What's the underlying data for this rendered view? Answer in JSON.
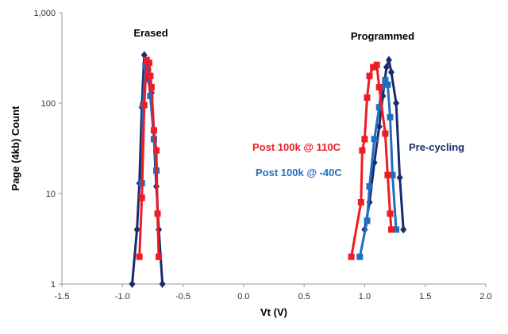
{
  "chart_data": {
    "type": "line",
    "xlabel": "Vt (V)",
    "ylabel": "Page (4kb) Count",
    "xlim": [
      -1.5,
      2.0
    ],
    "ylim": [
      1,
      1000
    ],
    "yscale": "log",
    "xticks": [
      "-1.5",
      "-1.0",
      "-0.5",
      "0.0",
      "0.5",
      "1.0",
      "1.5",
      "2.0"
    ],
    "yticks": [
      "1",
      "10",
      "100",
      "1,000"
    ],
    "annotations": [
      "Erased",
      "Programmed"
    ],
    "series": [
      {
        "name": "Post 100k @ 110C",
        "color": "#ee1c25",
        "marker": "square",
        "groups": [
          [
            [
              -0.86,
              2
            ],
            [
              -0.84,
              9
            ],
            [
              -0.82,
              95
            ],
            [
              -0.8,
              300
            ],
            [
              -0.78,
              280
            ],
            [
              -0.77,
              200
            ],
            [
              -0.76,
              150
            ],
            [
              -0.74,
              50
            ],
            [
              -0.72,
              30
            ],
            [
              -0.71,
              6
            ],
            [
              -0.7,
              2
            ]
          ],
          [
            [
              0.89,
              2
            ],
            [
              0.97,
              8
            ],
            [
              0.98,
              30
            ],
            [
              1.0,
              40
            ],
            [
              1.02,
              115
            ],
            [
              1.04,
              200
            ],
            [
              1.07,
              250
            ],
            [
              1.1,
              265
            ],
            [
              1.12,
              150
            ],
            [
              1.17,
              46
            ],
            [
              1.19,
              16
            ],
            [
              1.21,
              6
            ],
            [
              1.22,
              4
            ]
          ]
        ]
      },
      {
        "name": "Post 100k @ -40C",
        "color": "#1f6fc0",
        "marker": "square",
        "groups": [
          [
            [
              -0.84,
              13
            ],
            [
              -0.83,
              95
            ],
            [
              -0.81,
              260
            ],
            [
              -0.79,
              230
            ],
            [
              -0.77,
              120
            ],
            [
              -0.74,
              40
            ],
            [
              -0.72,
              18
            ],
            [
              -0.7,
              2
            ]
          ],
          [
            [
              0.96,
              2
            ],
            [
              1.02,
              5
            ],
            [
              1.04,
              12
            ],
            [
              1.08,
              40
            ],
            [
              1.12,
              90
            ],
            [
              1.14,
              150
            ],
            [
              1.17,
              180
            ],
            [
              1.19,
              160
            ],
            [
              1.21,
              70
            ],
            [
              1.23,
              16
            ],
            [
              1.26,
              4
            ]
          ]
        ]
      },
      {
        "name": "Pre-cycling",
        "color": "#1a2a6c",
        "marker": "diamond",
        "groups": [
          [
            [
              -0.92,
              1
            ],
            [
              -0.88,
              4
            ],
            [
              -0.86,
              13
            ],
            [
              -0.84,
              90
            ],
            [
              -0.82,
              340
            ],
            [
              -0.8,
              200
            ],
            [
              -0.76,
              130
            ],
            [
              -0.74,
              40
            ],
            [
              -0.72,
              12
            ],
            [
              -0.7,
              4
            ],
            [
              -0.67,
              1
            ]
          ],
          [
            [
              1.0,
              4
            ],
            [
              1.04,
              8
            ],
            [
              1.08,
              22
            ],
            [
              1.12,
              55
            ],
            [
              1.15,
              120
            ],
            [
              1.18,
              250
            ],
            [
              1.2,
              300
            ],
            [
              1.22,
              220
            ],
            [
              1.26,
              100
            ],
            [
              1.29,
              15
            ],
            [
              1.32,
              4
            ]
          ]
        ]
      }
    ]
  }
}
